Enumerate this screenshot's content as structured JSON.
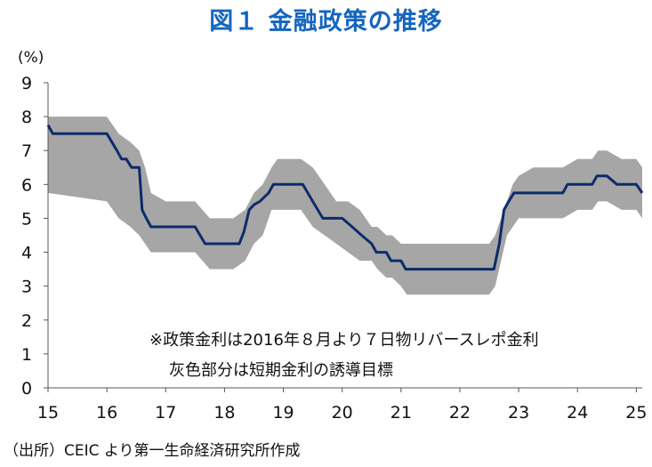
{
  "title": "図１ 金融政策の推移",
  "source": "（出所）CEIC より第一生命経済研究所作成",
  "colors": {
    "title": "#1565c0",
    "line": "#0d2b6b",
    "band": "#a6a6a6",
    "axis": "#555555"
  },
  "chart_data": {
    "type": "line",
    "title": "図１ 金融政策の推移",
    "ylabel": "(%)",
    "xlabel": "",
    "ylim": [
      0,
      9
    ],
    "xlim": [
      15,
      25.1
    ],
    "yticks": [
      "0",
      "1",
      "2",
      "3",
      "4",
      "5",
      "6",
      "7",
      "8",
      "9"
    ],
    "xticks": [
      "15",
      "16",
      "17",
      "18",
      "19",
      "20",
      "21",
      "22",
      "23",
      "24",
      "25"
    ],
    "grid": false,
    "annotations": [
      "※政策金利は2016年８月より７日物リバースレポ金利",
      "灰色部分は短期金利の誘導目標"
    ],
    "series": [
      {
        "x": [
          15.0,
          15.08,
          15.08,
          15.5,
          15.5,
          16.0,
          16.0,
          16.17,
          16.17,
          16.25,
          16.25,
          16.33,
          16.33,
          16.42,
          16.42,
          16.55,
          16.55,
          16.6,
          16.6,
          16.67,
          16.67,
          16.75,
          16.75,
          17.0,
          17.0,
          17.5,
          17.5,
          17.67,
          17.67,
          18.0,
          18.0,
          18.25,
          18.25,
          18.33,
          18.33,
          18.42,
          18.42,
          18.5,
          18.5,
          18.6,
          18.6,
          18.75,
          18.75,
          18.83,
          18.83,
          19.0,
          19.0,
          19.33,
          19.33,
          19.5,
          19.5,
          19.67,
          19.67,
          19.75,
          19.75,
          20.0,
          20.0,
          20.17,
          20.17,
          20.33,
          20.33,
          20.5,
          20.5,
          20.58,
          20.58,
          20.75,
          20.75,
          20.83,
          20.83,
          21.0,
          21.0,
          21.08,
          21.08,
          21.25,
          21.25,
          22.0,
          22.0,
          22.58,
          22.58,
          22.67,
          22.67,
          22.75,
          22.75,
          22.83,
          22.83,
          22.92,
          22.92,
          23.0,
          23.0,
          23.75,
          23.75,
          23.83,
          23.83,
          24.0,
          24.0,
          24.25,
          24.25,
          24.33,
          24.33,
          24.5,
          24.5,
          24.67,
          24.67,
          24.75,
          24.75,
          25.0,
          25.0,
          25.1
        ],
        "values": [
          7.75,
          7.5,
          7.5,
          7.5,
          7.5,
          7.5,
          7.5,
          7.0,
          7.0,
          6.75,
          6.75,
          6.75,
          6.75,
          6.5,
          6.5,
          6.5,
          6.5,
          5.25,
          5.25,
          5.0,
          5.0,
          4.75,
          4.75,
          4.75,
          4.75,
          4.75,
          4.75,
          4.25,
          4.25,
          4.25,
          4.25,
          4.25,
          4.25,
          4.6,
          4.6,
          5.25,
          5.25,
          5.4,
          5.4,
          5.5,
          5.5,
          5.75,
          5.75,
          6.0,
          6.0,
          6.0,
          6.0,
          6.0,
          6.0,
          5.5,
          5.5,
          5.0,
          5.0,
          5.0,
          5.0,
          5.0,
          5.0,
          4.75,
          4.75,
          4.5,
          4.5,
          4.25,
          4.25,
          4.0,
          4.0,
          4.0,
          4.0,
          3.75,
          3.75,
          3.75,
          3.75,
          3.5,
          3.5,
          3.5,
          3.5,
          3.5,
          3.5,
          3.5,
          3.5,
          4.25,
          4.25,
          5.25,
          5.25,
          5.5,
          5.5,
          5.75,
          5.75,
          5.75,
          5.75,
          5.75,
          5.75,
          6.0,
          6.0,
          6.0,
          6.0,
          6.0,
          6.0,
          6.25,
          6.25,
          6.25,
          6.25,
          6.0,
          6.0,
          6.0,
          6.0,
          6.0,
          6.0,
          5.75
        ]
      },
      {
        "x": [
          15.0,
          16.0,
          16.2,
          16.4,
          16.55,
          16.65,
          16.75,
          17.0,
          17.5,
          17.75,
          18.0,
          18.15,
          18.35,
          18.5,
          18.65,
          18.8,
          18.9,
          19.1,
          19.3,
          19.5,
          19.7,
          19.9,
          20.1,
          20.3,
          20.5,
          20.6,
          20.75,
          20.85,
          21.0,
          21.1,
          21.5,
          22.0,
          22.5,
          22.6,
          22.7,
          22.8,
          22.9,
          23.0,
          23.25,
          23.5,
          23.75,
          24.0,
          24.25,
          24.35,
          24.5,
          24.75,
          25.0,
          25.1
        ],
        "band_upper": [
          8.0,
          8.0,
          7.5,
          7.25,
          7.0,
          6.5,
          5.75,
          5.5,
          5.5,
          5.0,
          5.0,
          5.0,
          5.25,
          5.75,
          6.0,
          6.5,
          6.75,
          6.75,
          6.75,
          6.5,
          6.0,
          5.5,
          5.5,
          5.25,
          4.75,
          4.75,
          4.5,
          4.5,
          4.25,
          4.25,
          4.25,
          4.25,
          4.25,
          4.5,
          5.0,
          5.5,
          6.0,
          6.25,
          6.5,
          6.5,
          6.5,
          6.75,
          6.75,
          7.0,
          7.0,
          6.75,
          6.75,
          6.5
        ],
        "band_lower": [
          5.75,
          5.5,
          5.0,
          4.75,
          4.5,
          4.25,
          4.0,
          4.0,
          4.0,
          3.5,
          3.5,
          3.5,
          3.75,
          4.25,
          4.5,
          5.25,
          5.25,
          5.25,
          5.25,
          4.75,
          4.5,
          4.25,
          4.0,
          3.75,
          3.75,
          3.5,
          3.25,
          3.25,
          3.0,
          2.75,
          2.75,
          2.75,
          2.75,
          3.0,
          3.75,
          4.5,
          4.75,
          5.0,
          5.0,
          5.0,
          5.0,
          5.25,
          5.25,
          5.5,
          5.5,
          5.25,
          5.25,
          5.0
        ]
      }
    ]
  }
}
